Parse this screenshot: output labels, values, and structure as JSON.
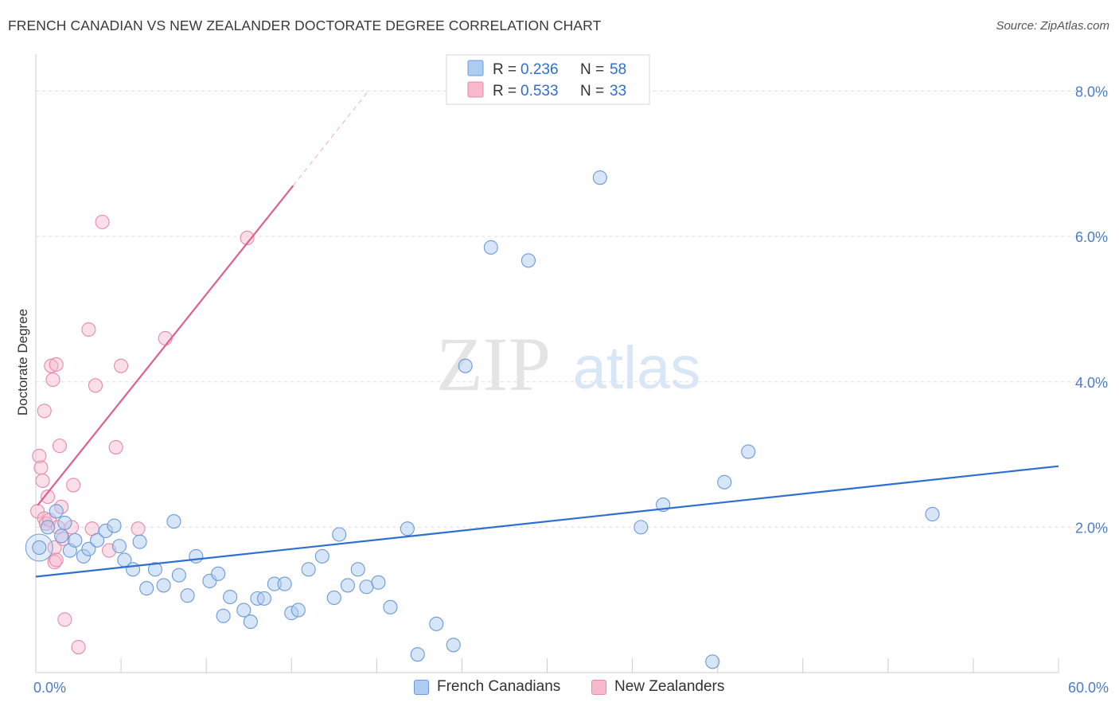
{
  "title": "FRENCH CANADIAN VS NEW ZEALANDER DOCTORATE DEGREE CORRELATION CHART",
  "source": "Source: ZipAtlas.com",
  "watermark": {
    "zip": "ZIP",
    "atlas": "atlas"
  },
  "colors": {
    "blue_fill": "#aecbf2",
    "blue_stroke": "#6b9ad8",
    "blue_line": "#2f6fd0",
    "pink_fill": "#f7b9cb",
    "pink_stroke": "#e889a8",
    "pink_line": "#e0608a",
    "grid": "#dddddd",
    "tick_text": "#4a7cc9"
  },
  "legend": {
    "r_label": "R =",
    "n_label": "N =",
    "entries": [
      {
        "r": "0.236",
        "n": "58",
        "series": "blue"
      },
      {
        "r": "0.533",
        "n": "33",
        "series": "pink"
      }
    ]
  },
  "chart_data": {
    "type": "scatter",
    "title": "FRENCH CANADIAN VS NEW ZEALANDER DOCTORATE DEGREE CORRELATION CHART",
    "xlabel": "",
    "ylabel": "Doctorate Degree",
    "xlim": [
      0,
      60
    ],
    "ylim": [
      0,
      8.4
    ],
    "x_tick_labels": [
      "0.0%",
      "60.0%"
    ],
    "y_ticks": [
      2,
      4,
      6,
      8
    ],
    "y_tick_labels": [
      "2.0%",
      "4.0%",
      "6.0%",
      "8.0%"
    ],
    "grid": true,
    "legend_position": "top-center",
    "series": [
      {
        "name": "French Canadians",
        "color": "#6b9ad8",
        "trend": {
          "x": [
            0,
            60
          ],
          "y": [
            1.32,
            2.84
          ]
        },
        "points": [
          [
            0.2,
            1.72
          ],
          [
            0.7,
            2.0
          ],
          [
            1.2,
            2.22
          ],
          [
            1.5,
            1.88
          ],
          [
            1.7,
            2.06
          ],
          [
            2.0,
            1.68
          ],
          [
            2.3,
            1.82
          ],
          [
            2.8,
            1.6
          ],
          [
            3.1,
            1.7
          ],
          [
            3.6,
            1.82
          ],
          [
            4.1,
            1.95
          ],
          [
            4.6,
            2.02
          ],
          [
            4.9,
            1.74
          ],
          [
            5.2,
            1.55
          ],
          [
            5.7,
            1.42
          ],
          [
            6.1,
            1.8
          ],
          [
            6.5,
            1.16
          ],
          [
            7.0,
            1.42
          ],
          [
            7.5,
            1.2
          ],
          [
            8.1,
            2.08
          ],
          [
            8.4,
            1.34
          ],
          [
            8.9,
            1.06
          ],
          [
            9.4,
            1.6
          ],
          [
            10.2,
            1.26
          ],
          [
            10.7,
            1.36
          ],
          [
            11.0,
            0.78
          ],
          [
            11.4,
            1.04
          ],
          [
            12.2,
            0.86
          ],
          [
            12.6,
            0.7
          ],
          [
            13.0,
            1.02
          ],
          [
            13.4,
            1.02
          ],
          [
            14.0,
            1.22
          ],
          [
            14.6,
            1.22
          ],
          [
            15.0,
            0.82
          ],
          [
            15.4,
            0.86
          ],
          [
            16.0,
            1.42
          ],
          [
            16.8,
            1.6
          ],
          [
            17.5,
            1.03
          ],
          [
            17.8,
            1.9
          ],
          [
            18.3,
            1.2
          ],
          [
            18.9,
            1.42
          ],
          [
            19.4,
            1.18
          ],
          [
            20.1,
            1.24
          ],
          [
            20.8,
            0.9
          ],
          [
            21.8,
            1.98
          ],
          [
            22.4,
            0.25
          ],
          [
            23.5,
            0.67
          ],
          [
            24.5,
            0.38
          ],
          [
            25.2,
            4.22
          ],
          [
            26.7,
            5.85
          ],
          [
            28.9,
            5.67
          ],
          [
            33.1,
            6.81
          ],
          [
            35.5,
            2.0
          ],
          [
            36.8,
            2.31
          ],
          [
            39.7,
            0.15
          ],
          [
            40.4,
            2.62
          ],
          [
            41.8,
            3.04
          ],
          [
            52.6,
            2.18
          ]
        ]
      },
      {
        "name": "New Zealanders",
        "color": "#e889a8",
        "trend": {
          "x": [
            0.1,
            15.1
          ],
          "y": [
            2.3,
            6.7
          ]
        },
        "trend_dashed": {
          "x": [
            15.1,
            19.5
          ],
          "y": [
            6.7,
            8.0
          ]
        },
        "points": [
          [
            0.1,
            2.22
          ],
          [
            0.2,
            2.98
          ],
          [
            0.3,
            2.82
          ],
          [
            0.4,
            2.64
          ],
          [
            0.5,
            2.12
          ],
          [
            0.6,
            2.05
          ],
          [
            0.7,
            2.42
          ],
          [
            0.5,
            3.6
          ],
          [
            0.8,
            2.1
          ],
          [
            0.9,
            4.22
          ],
          [
            1.0,
            4.03
          ],
          [
            1.1,
            1.52
          ],
          [
            1.1,
            1.72
          ],
          [
            1.2,
            1.55
          ],
          [
            1.2,
            4.24
          ],
          [
            1.3,
            2.0
          ],
          [
            1.4,
            3.12
          ],
          [
            1.5,
            2.28
          ],
          [
            1.6,
            1.84
          ],
          [
            1.7,
            0.73
          ],
          [
            2.2,
            2.58
          ],
          [
            2.5,
            0.35
          ],
          [
            3.1,
            4.72
          ],
          [
            3.5,
            3.95
          ],
          [
            3.9,
            6.2
          ],
          [
            4.3,
            1.68
          ],
          [
            4.7,
            3.1
          ],
          [
            5.0,
            4.22
          ],
          [
            6.0,
            1.98
          ],
          [
            7.6,
            4.6
          ],
          [
            12.4,
            5.98
          ],
          [
            2.1,
            2.0
          ],
          [
            3.3,
            1.98
          ]
        ]
      }
    ]
  }
}
